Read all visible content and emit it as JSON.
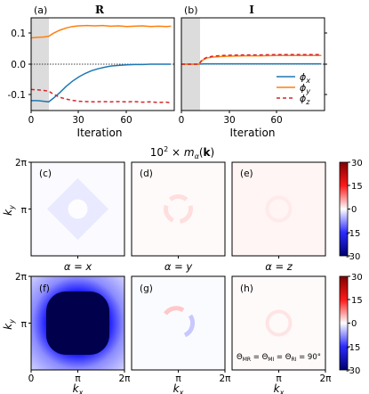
{
  "chart_data": [
    {
      "id": "a",
      "type": "line",
      "panel_label": "(a)",
      "title": "R",
      "xlabel": "Iteration",
      "xlim": [
        0,
        90
      ],
      "ylim": [
        -0.15,
        0.15
      ],
      "xticks": [
        "0",
        "30",
        "60"
      ],
      "xtick_values": [
        0,
        30,
        60
      ],
      "yticks": [
        "0.1",
        "0.0",
        "-0.1"
      ],
      "ytick_values": [
        0.1,
        0.0,
        -0.1
      ],
      "shaded_region": [
        0,
        11
      ],
      "zero_line": true,
      "series": [
        {
          "key": "phi_x",
          "color": "#1f77b4",
          "dash": "",
          "x": [
            0,
            4,
            8,
            11,
            14,
            18,
            22,
            26,
            30,
            34,
            38,
            42,
            46,
            50,
            55,
            60,
            65,
            70,
            75,
            80,
            85,
            88
          ],
          "y": [
            -0.118,
            -0.118,
            -0.12,
            -0.122,
            -0.11,
            -0.092,
            -0.072,
            -0.055,
            -0.041,
            -0.03,
            -0.021,
            -0.015,
            -0.01,
            -0.006,
            -0.004,
            -0.002,
            -0.001,
            -0.001,
            0.0,
            0.0,
            0.0,
            0.0
          ]
        },
        {
          "key": "phi_y",
          "color": "#ff7f0e",
          "dash": "",
          "x": [
            0,
            4,
            8,
            11,
            14,
            18,
            22,
            26,
            30,
            35,
            40,
            45,
            50,
            55,
            60,
            65,
            70,
            75,
            80,
            85,
            88
          ],
          "y": [
            0.085,
            0.087,
            0.088,
            0.09,
            0.1,
            0.11,
            0.117,
            0.122,
            0.124,
            0.125,
            0.124,
            0.125,
            0.123,
            0.124,
            0.122,
            0.123,
            0.124,
            0.122,
            0.123,
            0.122,
            0.123
          ]
        },
        {
          "key": "phi_z",
          "color": "#d62728",
          "dash": "4,3",
          "x": [
            0,
            4,
            8,
            11,
            14,
            18,
            22,
            26,
            30,
            35,
            40,
            45,
            50,
            55,
            60,
            65,
            70,
            75,
            80,
            85,
            88
          ],
          "y": [
            -0.082,
            -0.083,
            -0.085,
            -0.087,
            -0.097,
            -0.107,
            -0.113,
            -0.117,
            -0.12,
            -0.121,
            -0.122,
            -0.121,
            -0.122,
            -0.121,
            -0.122,
            -0.121,
            -0.123,
            -0.122,
            -0.124,
            -0.123,
            -0.125
          ]
        }
      ]
    },
    {
      "id": "b",
      "type": "line",
      "panel_label": "(b)",
      "title": "I",
      "xlabel": "Iteration",
      "xlim": [
        0,
        90
      ],
      "ylim": [
        -0.15,
        0.15
      ],
      "xticks": [
        "0",
        "30",
        "60"
      ],
      "xtick_values": [
        0,
        30,
        60
      ],
      "shaded_region": [
        0,
        11
      ],
      "zero_line": true,
      "series": [
        {
          "key": "phi_x",
          "color": "#1f77b4",
          "dash": "",
          "x": [
            0,
            11,
            14,
            20,
            30,
            40,
            50,
            60,
            70,
            80,
            88
          ],
          "y": [
            0.0,
            0.0,
            0.001,
            0.001,
            0.001,
            0.001,
            0.001,
            0.001,
            0.001,
            0.001,
            0.001
          ]
        },
        {
          "key": "phi_y",
          "color": "#ff7f0e",
          "dash": "",
          "x": [
            0,
            11,
            13,
            16,
            20,
            25,
            30,
            40,
            50,
            60,
            70,
            80,
            88
          ],
          "y": [
            0.0,
            0.0,
            0.012,
            0.02,
            0.023,
            0.025,
            0.026,
            0.027,
            0.027,
            0.028,
            0.028,
            0.028,
            0.028
          ]
        },
        {
          "key": "phi_z",
          "color": "#d62728",
          "dash": "4,3",
          "x": [
            0,
            11,
            13,
            16,
            20,
            25,
            30,
            40,
            50,
            60,
            70,
            80,
            88
          ],
          "y": [
            0.0,
            0.0,
            0.014,
            0.022,
            0.026,
            0.028,
            0.029,
            0.03,
            0.03,
            0.031,
            0.031,
            0.031,
            0.031
          ]
        }
      ]
    },
    {
      "id": "heatmaps",
      "type": "heatmap",
      "title": "10² × m_α(k)",
      "xlabel": "k_x",
      "ylabel": "k_y",
      "xticks": [
        "0",
        "π",
        "2π"
      ],
      "yticks": [
        "2π",
        "π"
      ],
      "colorbar_ticks": [
        "30",
        "15",
        "0",
        "-15",
        "-30"
      ],
      "colorbar_tick_values": [
        30,
        15,
        0,
        -15,
        -30
      ],
      "colorbar_range": [
        -30,
        30
      ],
      "column_labels": [
        "α = x",
        "α = y",
        "α = z"
      ],
      "annotation": "Θ_MR = Θ_MI = Θ_RI = 90°",
      "panels": [
        {
          "label": "(c)",
          "pattern": "diamond-faint"
        },
        {
          "label": "(d)",
          "pattern": "ring-faint"
        },
        {
          "label": "(e)",
          "pattern": "ring-very-faint"
        },
        {
          "label": "(f)",
          "pattern": "diamond-strong"
        },
        {
          "label": "(g)",
          "pattern": "ring-faint"
        },
        {
          "label": "(h)",
          "pattern": "ring-very-faint"
        }
      ]
    }
  ],
  "legend": {
    "entries": [
      {
        "symbol": "ϕ",
        "sub": "x",
        "color": "#1f77b4",
        "dash": ""
      },
      {
        "symbol": "ϕ",
        "sub": "y",
        "color": "#ff7f0e",
        "dash": ""
      },
      {
        "symbol": "ϕ",
        "sub": "z",
        "color": "#d62728",
        "dash": "4,3"
      }
    ],
    "placement": "lower-right of panel (b)"
  },
  "colors": {
    "shade": "#dcdcdc",
    "cmap_neg": "#00006e",
    "cmap_pos": "#800000"
  }
}
